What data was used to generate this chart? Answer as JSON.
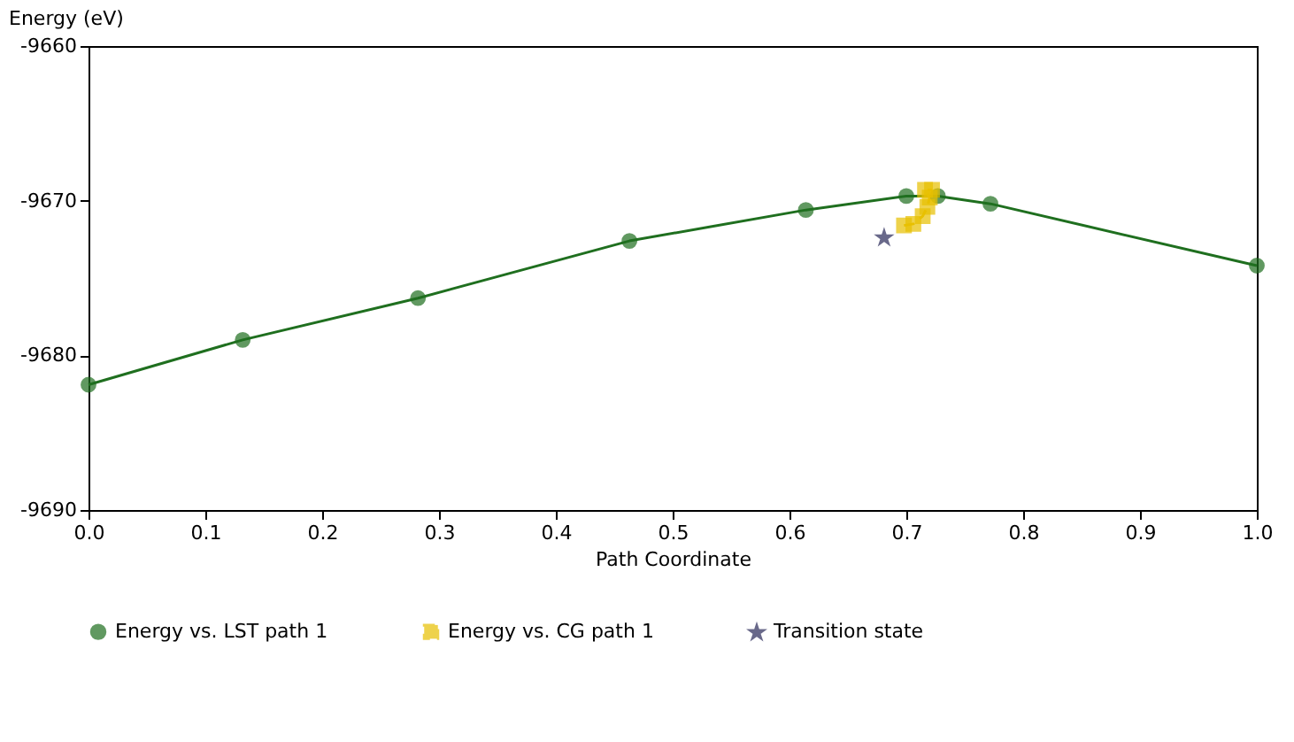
{
  "chart_data": {
    "type": "line",
    "xlabel": "Path Coordinate",
    "ylabel": "Energy (eV)",
    "xlim": [
      0,
      1
    ],
    "xticks": [
      {
        "value": 0,
        "label": "0.0"
      },
      0.1,
      0.2,
      0.3,
      0.4,
      0.5,
      0.6,
      0.7,
      0.8,
      0.9,
      {
        "value": 1,
        "label": "1.0"
      }
    ],
    "ylim": [
      -9690,
      -9660
    ],
    "yticks": [
      -9690,
      -9680,
      -9670,
      -9660
    ],
    "grid": false,
    "legend": "bottom",
    "series": [
      {
        "name": "Energy vs. LST path 1",
        "type": "line",
        "color": "#1f6f1f",
        "marker": "circle",
        "line_style": "solid",
        "x": [
          0,
          0.132,
          0.282,
          0.463,
          0.614,
          0.7,
          0.727,
          0.772,
          1.0
        ],
        "values": [
          -9681.9,
          -9679.0,
          -9676.3,
          -9672.6,
          -9670.6,
          -9669.7,
          -9669.7,
          -9670.2,
          -9674.2
        ]
      },
      {
        "name": "Energy vs. CG path 1",
        "type": "line",
        "color": "#e8c000",
        "marker": "square",
        "line_style": "dashed",
        "x": [
          0.698,
          0.706,
          0.714,
          0.718,
          0.72,
          0.716,
          0.722
        ],
        "values": [
          -9671.6,
          -9671.5,
          -9671.0,
          -9670.4,
          -9669.8,
          -9669.3,
          -9669.3
        ]
      },
      {
        "name": "Transition state",
        "type": "scatter",
        "color": "#2a2a5a",
        "marker": "star",
        "x": [
          0.681
        ],
        "values": [
          -9672.4
        ]
      }
    ]
  }
}
